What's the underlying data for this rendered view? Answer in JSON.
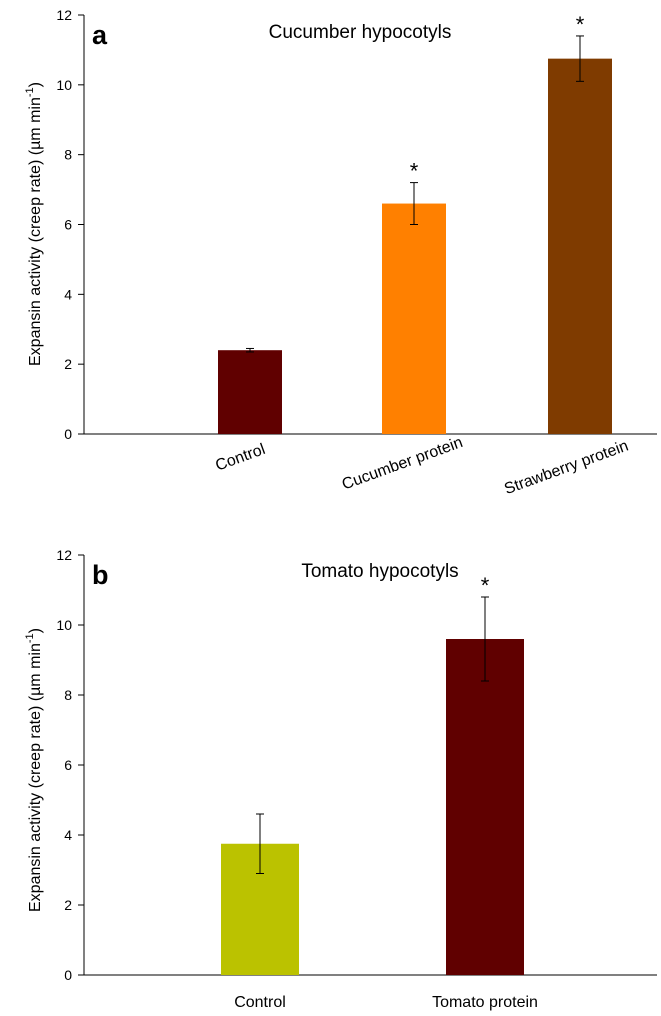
{
  "chart_data": [
    {
      "type": "bar",
      "panel_label": "a",
      "title": "Cucumber hypocotyls",
      "ylabel": "Expansin activity (creep rate) (µm min⁻¹)",
      "ylabel_main": "Expansin activity (creep rate) (µm min",
      "ylabel_sup": "-1",
      "ylabel_end": ")",
      "ylim": [
        0,
        12
      ],
      "yticks": [
        "0",
        "2",
        "4",
        "6",
        "8",
        "10",
        "12"
      ],
      "categories": [
        "Control",
        "Cucumber protein",
        "Strawberry protein"
      ],
      "category_label_rotation_deg": -20,
      "values": [
        2.4,
        6.6,
        10.75
      ],
      "errors": [
        0.05,
        0.6,
        0.65
      ],
      "significance": [
        "",
        "*",
        "*"
      ],
      "colors": [
        "#600000",
        "#ff8000",
        "#7f3b00"
      ],
      "grid": false,
      "legend": "none"
    },
    {
      "type": "bar",
      "panel_label": "b",
      "title": "Tomato hypocotyls",
      "ylabel": "Expansin activity (creep rate) (µm min⁻¹)",
      "ylabel_main": "Expansin activity (creep rate) (µm min",
      "ylabel_sup": "-1",
      "ylabel_end": ")",
      "ylim": [
        0,
        12
      ],
      "yticks": [
        "0",
        "2",
        "4",
        "6",
        "8",
        "10",
        "12"
      ],
      "categories": [
        "Control",
        "Tomato protein"
      ],
      "category_label_rotation_deg": 0,
      "values": [
        3.75,
        9.6
      ],
      "errors": [
        0.85,
        1.2
      ],
      "significance": [
        "",
        "*"
      ],
      "colors": [
        "#bbc200",
        "#600000"
      ],
      "grid": false,
      "legend": "none"
    }
  ]
}
